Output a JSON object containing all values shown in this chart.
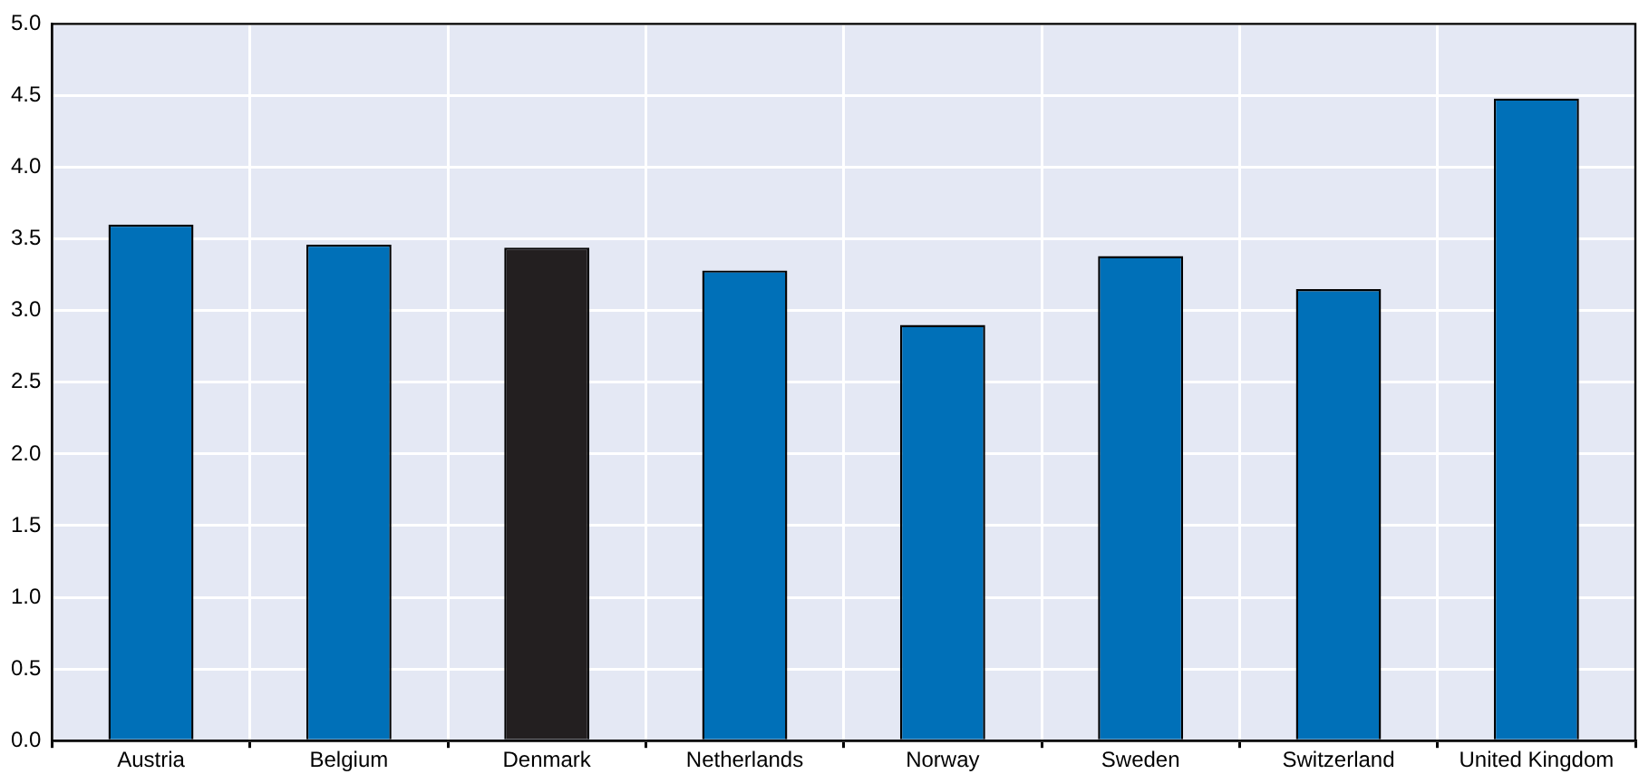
{
  "chart_data": {
    "type": "bar",
    "categories": [
      "Austria",
      "Belgium",
      "Denmark",
      "Netherlands",
      "Norway",
      "Sweden",
      "Switzerland",
      "United Kingdom"
    ],
    "values": [
      3.6,
      3.46,
      3.44,
      3.28,
      2.9,
      3.38,
      3.15,
      4.48
    ],
    "colors": [
      "#0070b8",
      "#0070b8",
      "#231f20",
      "#0070b8",
      "#0070b8",
      "#0070b8",
      "#0070b8",
      "#0070b8"
    ],
    "ylim": [
      0,
      5
    ],
    "yticks": [
      {
        "value": 0,
        "label": "0.0"
      },
      0.5,
      {
        "value": 1,
        "label": "1.0"
      },
      1.5,
      {
        "value": 2,
        "label": "2.0"
      },
      2.5,
      {
        "value": 3,
        "label": "3.0"
      },
      3.5,
      {
        "value": 4,
        "label": "4.0"
      },
      4.5,
      {
        "value": 5,
        "label": "5.0"
      }
    ],
    "grid": true,
    "legend": false
  }
}
